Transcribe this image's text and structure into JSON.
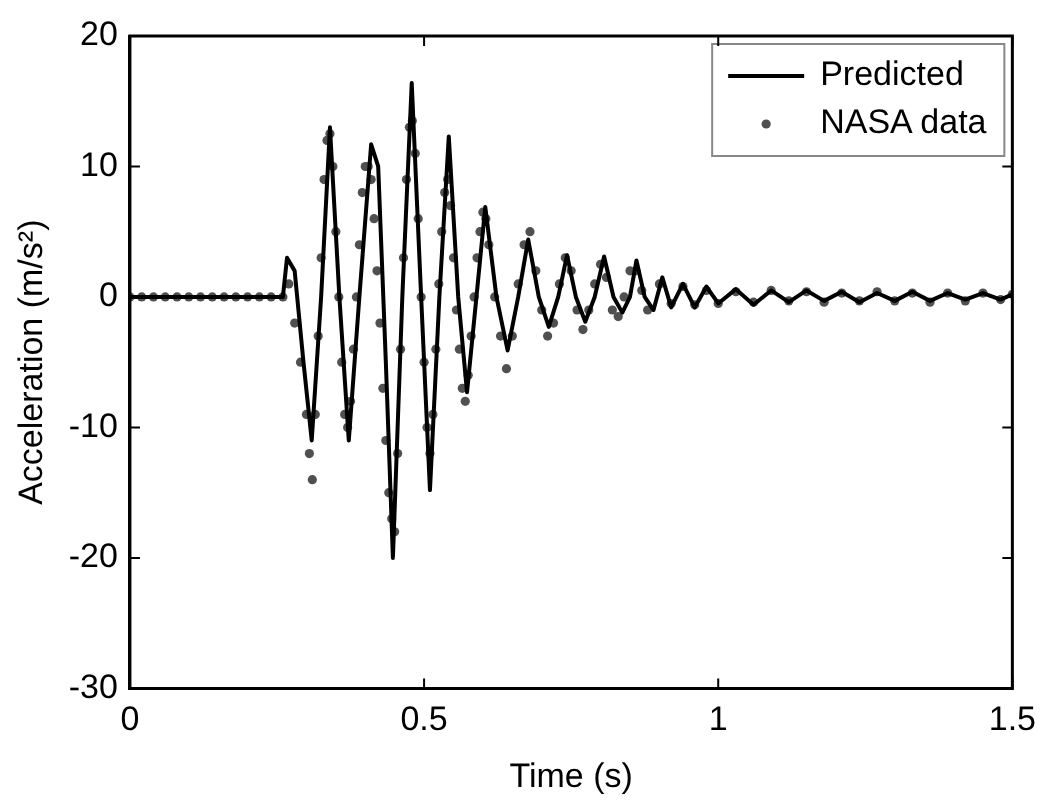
{
  "chart_data": {
    "type": "line",
    "xlabel": "Time (s)",
    "ylabel": "Acceleration (m/s²)",
    "xlim": [
      0,
      1.5
    ],
    "xticks": [
      0,
      0.5,
      1,
      1.5
    ],
    "ylim": [
      -30,
      20
    ],
    "yticks": [
      -30,
      -20,
      -10,
      0,
      10,
      20
    ],
    "grid": false,
    "legend": "top right",
    "series": [
      {
        "name": "Predicted",
        "color": "#000000",
        "marker": "none",
        "line_style": "solid",
        "x": [
          0,
          0.26,
          0.267,
          0.28,
          0.295,
          0.309,
          0.325,
          0.34,
          0.356,
          0.372,
          0.39,
          0.41,
          0.422,
          0.435,
          0.447,
          0.463,
          0.479,
          0.495,
          0.51,
          0.526,
          0.542,
          0.558,
          0.573,
          0.589,
          0.604,
          0.623,
          0.642,
          0.66,
          0.677,
          0.695,
          0.712,
          0.728,
          0.743,
          0.758,
          0.774,
          0.79,
          0.806,
          0.822,
          0.837,
          0.85,
          0.861,
          0.875,
          0.89,
          0.905,
          0.92,
          0.94,
          0.96,
          0.98,
          1.0,
          1.03,
          1.06,
          1.09,
          1.12,
          1.15,
          1.18,
          1.21,
          1.24,
          1.27,
          1.3,
          1.33,
          1.36,
          1.39,
          1.42,
          1.45,
          1.48,
          1.5
        ],
        "values": [
          0,
          0,
          3,
          2,
          -5,
          -11,
          0,
          13,
          0,
          -11,
          0,
          11.7,
          10,
          -5,
          -20,
          0,
          16.4,
          0,
          -14.8,
          0,
          12.3,
          0,
          -7.3,
          0,
          6.9,
          0,
          -4.1,
          0,
          4.4,
          0,
          -2.3,
          0,
          3.2,
          0,
          -1.9,
          0,
          3.1,
          0,
          -1.2,
          0,
          2.8,
          0,
          -1,
          1.5,
          -0.8,
          1,
          -0.8,
          0.8,
          -0.5,
          0.6,
          -0.6,
          0.5,
          -0.4,
          0.5,
          -0.3,
          0.4,
          -0.4,
          0.3,
          -0.3,
          0.4,
          -0.3,
          0.3,
          -0.2,
          0.3,
          -0.2,
          0.2
        ]
      },
      {
        "name": "NASA data",
        "type": "scatter",
        "color": "#505050",
        "marker": "circle",
        "x": [
          0,
          0.02,
          0.04,
          0.06,
          0.08,
          0.1,
          0.12,
          0.14,
          0.16,
          0.18,
          0.2,
          0.22,
          0.24,
          0.26,
          0.27,
          0.28,
          0.29,
          0.3,
          0.305,
          0.31,
          0.315,
          0.32,
          0.325,
          0.33,
          0.335,
          0.34,
          0.345,
          0.35,
          0.355,
          0.36,
          0.365,
          0.37,
          0.375,
          0.38,
          0.385,
          0.39,
          0.395,
          0.4,
          0.405,
          0.41,
          0.415,
          0.42,
          0.425,
          0.43,
          0.435,
          0.44,
          0.445,
          0.45,
          0.455,
          0.46,
          0.465,
          0.47,
          0.475,
          0.48,
          0.485,
          0.49,
          0.495,
          0.5,
          0.505,
          0.51,
          0.515,
          0.52,
          0.525,
          0.53,
          0.535,
          0.54,
          0.545,
          0.55,
          0.555,
          0.56,
          0.565,
          0.57,
          0.575,
          0.58,
          0.585,
          0.59,
          0.595,
          0.6,
          0.605,
          0.61,
          0.62,
          0.63,
          0.64,
          0.65,
          0.66,
          0.67,
          0.68,
          0.69,
          0.7,
          0.71,
          0.72,
          0.73,
          0.74,
          0.75,
          0.76,
          0.77,
          0.78,
          0.79,
          0.8,
          0.81,
          0.82,
          0.83,
          0.84,
          0.85,
          0.86,
          0.87,
          0.88,
          0.9,
          0.92,
          0.94,
          0.96,
          0.98,
          1.0,
          1.03,
          1.06,
          1.09,
          1.12,
          1.15,
          1.18,
          1.21,
          1.24,
          1.27,
          1.3,
          1.33,
          1.36,
          1.39,
          1.42,
          1.45,
          1.48,
          1.5
        ],
        "values": [
          0,
          0,
          0,
          0,
          0,
          0,
          0,
          0,
          0,
          0,
          0,
          0,
          0,
          0,
          1,
          -2,
          -5,
          -9,
          -12,
          -14,
          -9,
          -3,
          3,
          9,
          12,
          12.5,
          10,
          5,
          0,
          -5,
          -9,
          -10,
          -8,
          -4,
          0,
          4,
          8,
          10,
          10,
          9,
          6,
          2,
          -2,
          -7,
          -11,
          -15,
          -17,
          -18,
          -12,
          -4,
          3,
          9,
          13,
          13.5,
          11,
          6,
          0,
          -5,
          -10,
          -12,
          -9,
          -4,
          1,
          5,
          8,
          9,
          7,
          3,
          -1,
          -4,
          -7,
          -8,
          -6,
          -3,
          0,
          3,
          5,
          6.5,
          6,
          4,
          0,
          -3,
          -5.5,
          -3,
          1,
          4,
          5,
          2,
          -1,
          -3,
          -2,
          1,
          3,
          2,
          -1,
          -2.5,
          -1,
          1,
          2.5,
          1.5,
          -1,
          -1.5,
          0,
          2,
          2,
          0.5,
          -1,
          1,
          -0.5,
          0.8,
          -0.6,
          0.5,
          -0.5,
          0.4,
          -0.4,
          0.5,
          -0.3,
          0.4,
          -0.4,
          0.3,
          -0.3,
          0.4,
          -0.3,
          0.3,
          -0.4,
          0.3,
          -0.3,
          0.3,
          -0.2,
          0.2
        ]
      }
    ]
  }
}
